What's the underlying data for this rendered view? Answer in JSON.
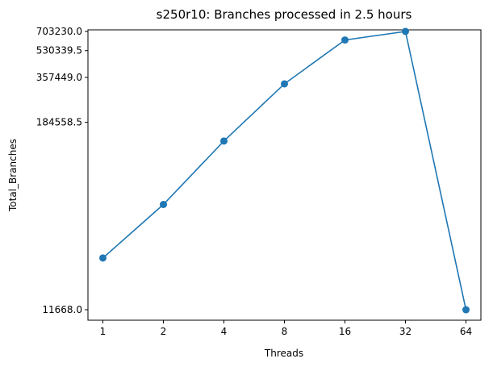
{
  "chart_data": {
    "type": "line",
    "title": "s250r10: Branches processed in 2.5 hours",
    "xlabel": "Threads",
    "ylabel": "Total_Branches",
    "categories": [
      "1",
      "2",
      "4",
      "8",
      "16",
      "32",
      "64"
    ],
    "yscale": "log",
    "ylim": [
      10000,
      720000
    ],
    "yticks": [
      11668.0,
      184558.5,
      357449.0,
      530339.5,
      703230.0
    ],
    "ytick_labels": [
      "11668.0",
      "184558.5",
      "357449.0",
      "530339.5",
      "703230.0"
    ],
    "series": [
      {
        "values": [
          25000,
          55000,
          140000,
          325000,
          620000,
          703230,
          11668
        ]
      }
    ],
    "grid": false,
    "color": "#1f77b4"
  }
}
